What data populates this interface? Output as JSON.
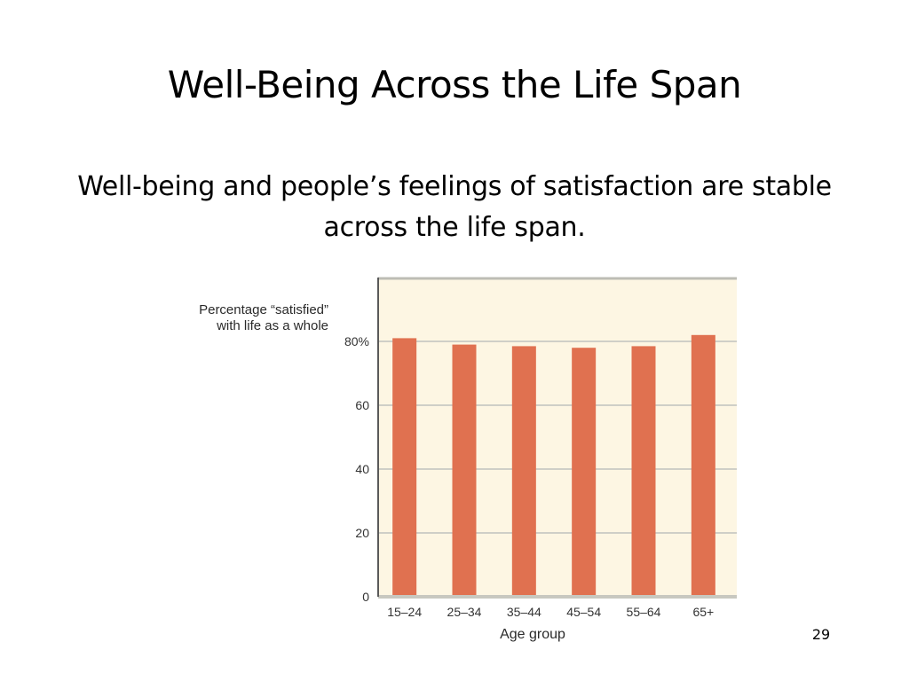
{
  "slide": {
    "title": "Well-Being Across the Life Span",
    "subtitle": "Well-being and people’s feelings of satisfaction are stable across the life span.",
    "page_number": "29"
  },
  "chart_data": {
    "type": "bar",
    "ylabel_lines": [
      "Percentage “satisfied”",
      "with life as a whole"
    ],
    "xlabel": "Age group",
    "categories": [
      "15–24",
      "25–34",
      "35–44",
      "45–54",
      "55–64",
      "65+"
    ],
    "values": [
      81,
      79,
      78.5,
      78,
      78.5,
      82
    ],
    "ylim": [
      0,
      100
    ],
    "yticks": [
      0,
      20,
      40,
      60,
      80
    ],
    "ytick_labels": [
      "0",
      "20",
      "40",
      "60",
      "80%"
    ],
    "grid": true,
    "colors": {
      "bar": "#e07150",
      "plot_background": "#fdf6e3",
      "grid": "#cfcfc7",
      "axis": "#5a5a5a",
      "tick_text": "#333333"
    }
  }
}
